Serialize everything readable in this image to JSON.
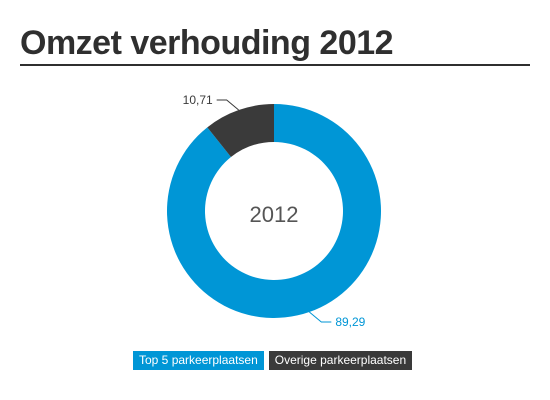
{
  "header": {
    "title": "Omzet verhouding 2012"
  },
  "chart_data": {
    "type": "pie",
    "variant": "donut",
    "center_label": "2012",
    "categories": [
      "Top 5 parkeerplaatsen",
      "Overige parkeerplaatsen"
    ],
    "values": [
      89.29,
      10.71
    ],
    "value_labels": [
      "89,29",
      "10,71"
    ],
    "colors": [
      "#0096d6",
      "#3a3a3a"
    ],
    "legend_position": "bottom"
  }
}
